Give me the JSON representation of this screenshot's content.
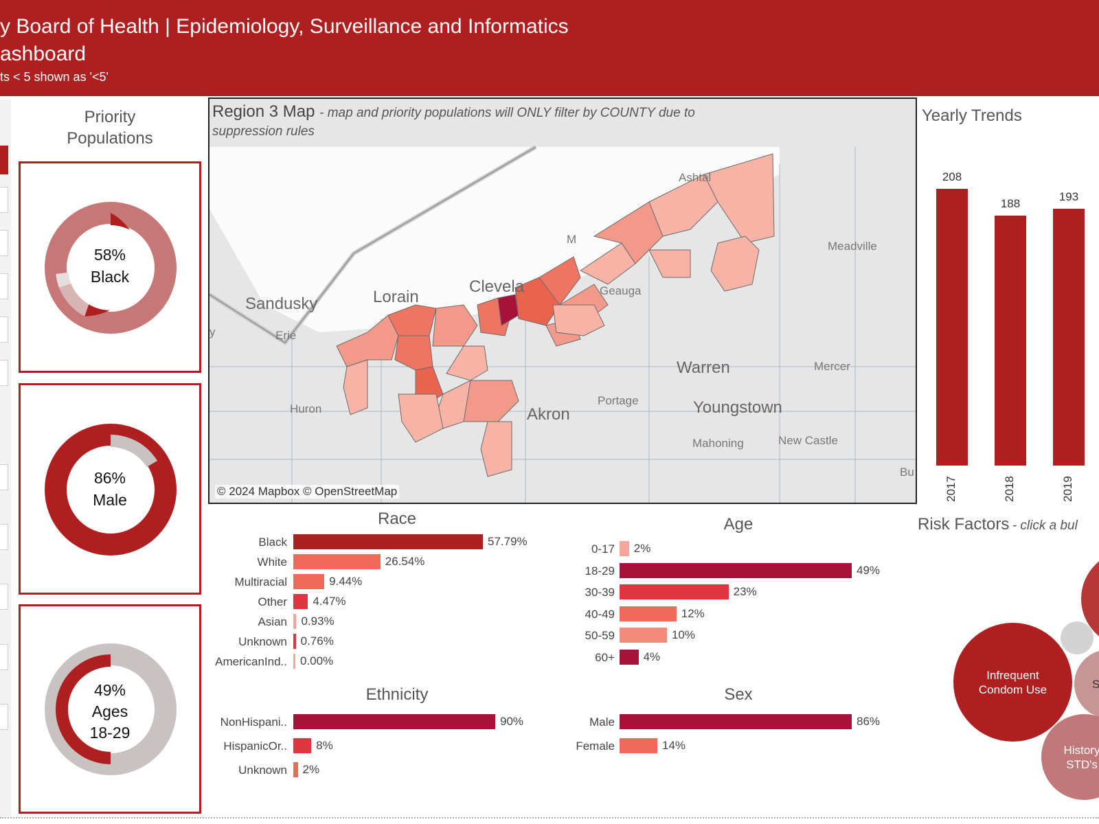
{
  "header": {
    "title_line1": "y Board of Health | Epidemiology, Surveillance and Informatics",
    "title_line2": "ashboard",
    "note": "ts < 5 shown as '<5'"
  },
  "priority": {
    "title_line1": "Priority",
    "title_line2": "Populations",
    "cards": [
      {
        "pct_label": "58%",
        "group_label": "Black",
        "group_label2": "",
        "value": 0.58
      },
      {
        "pct_label": "86%",
        "group_label": "Male",
        "group_label2": "",
        "value": 0.86
      },
      {
        "pct_label": "49%",
        "group_label": "Ages",
        "group_label2": "18-29",
        "value": 0.49
      }
    ]
  },
  "map": {
    "title": "Region 3 Map",
    "subtitle": "- map and priority populations will ONLY filter by COUNTY due to suppression rules",
    "copyright": "© 2024 Mapbox  © OpenStreetMap",
    "cities": {
      "sandusky": "Sandusky",
      "erie": "Erie",
      "lorain": "Lorain",
      "cleveland": "Clevela",
      "ashtabula": "Ashtal",
      "meadville": "Meadville",
      "geauga": "Geauga",
      "warren": "Warren",
      "mercer": "Mercer",
      "huron": "Huron",
      "portage": "Portage",
      "youngstown": "Youngstown",
      "akron": "Akron",
      "mahoning": "Mahoning",
      "newcastle": "New Castle",
      "m": "M",
      "bu": "Bu",
      "y": "y"
    }
  },
  "yearly": {
    "title": "Yearly Trends",
    "bars": [
      {
        "year": "2017",
        "value": 208
      },
      {
        "year": "2018",
        "value": 188
      },
      {
        "year": "2019",
        "value": 193
      }
    ]
  },
  "race": {
    "title": "Race",
    "rows": [
      {
        "label": "Black",
        "pct": 57.79,
        "text": "57.79%",
        "color": "#b01f1f"
      },
      {
        "label": "White",
        "pct": 26.54,
        "text": "26.54%",
        "color": "#f0685a"
      },
      {
        "label": "Multiracial",
        "pct": 9.44,
        "text": "9.44%",
        "color": "#f0685a"
      },
      {
        "label": "Other",
        "pct": 4.47,
        "text": "4.47%",
        "color": "#e0343f"
      },
      {
        "label": "Asian",
        "pct": 0.93,
        "text": "0.93%",
        "color": "#f7a49a"
      },
      {
        "label": "Unknown",
        "pct": 0.76,
        "text": "0.76%",
        "color": "#e0343f"
      },
      {
        "label": "AmericanInd..",
        "pct": 0.0,
        "text": "0.00%",
        "color": "#f7a49a"
      }
    ]
  },
  "age": {
    "title": "Age",
    "rows": [
      {
        "label": "0-17",
        "pct": 2,
        "text": "2%",
        "color": "#f7a49a"
      },
      {
        "label": "18-29",
        "pct": 49,
        "text": "49%",
        "color": "#a8123a"
      },
      {
        "label": "30-39",
        "pct": 23,
        "text": "23%",
        "color": "#e0343f"
      },
      {
        "label": "40-49",
        "pct": 12,
        "text": "12%",
        "color": "#f0685a"
      },
      {
        "label": "50-59",
        "pct": 10,
        "text": "10%",
        "color": "#f58a7a"
      },
      {
        "label": "60+",
        "pct": 4,
        "text": "4%",
        "color": "#a8123a"
      }
    ]
  },
  "ethnicity": {
    "title": "Ethnicity",
    "rows": [
      {
        "label": "NonHispani..",
        "pct": 90,
        "text": "90%",
        "color": "#a8123a"
      },
      {
        "label": "HispanicOr..",
        "pct": 8,
        "text": "8%",
        "color": "#e0343f"
      },
      {
        "label": "Unknown",
        "pct": 2,
        "text": "2%",
        "color": "#f0685a"
      }
    ]
  },
  "sex": {
    "title": "Sex",
    "rows": [
      {
        "label": "Male",
        "pct": 86,
        "text": "86%",
        "color": "#a8123a"
      },
      {
        "label": "Female",
        "pct": 14,
        "text": "14%",
        "color": "#f0685a"
      }
    ]
  },
  "risk": {
    "title": "Risk Factors",
    "subtitle": "- click a bul",
    "bubbles": [
      {
        "label": "Infrequent Condom Use"
      },
      {
        "label": "Sy"
      },
      {
        "label": "History STD's"
      }
    ]
  }
}
